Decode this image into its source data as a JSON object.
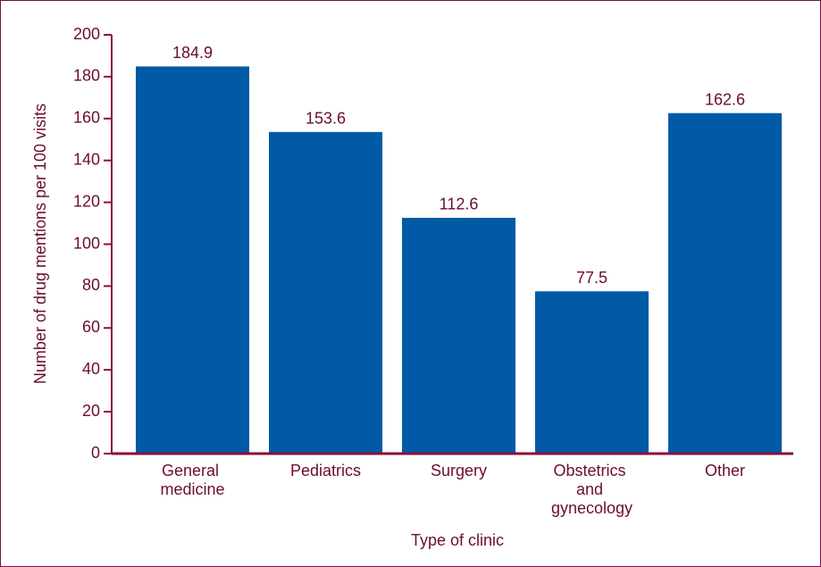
{
  "chart_data": {
    "type": "bar",
    "y_label": "Number of drug mentions per 100 visits",
    "x_label": "Type of clinic",
    "categories": [
      "General medicine",
      "Pediatrics",
      "Surgery",
      "Obstetrics and gynecology",
      "Other"
    ],
    "values": [
      184.9,
      153.6,
      112.6,
      77.5,
      162.6
    ],
    "color": "#005aa6",
    "ylim": [
      0,
      200
    ],
    "yticks": [
      0,
      20,
      40,
      60,
      80,
      100,
      120,
      140,
      160,
      180,
      200
    ]
  }
}
